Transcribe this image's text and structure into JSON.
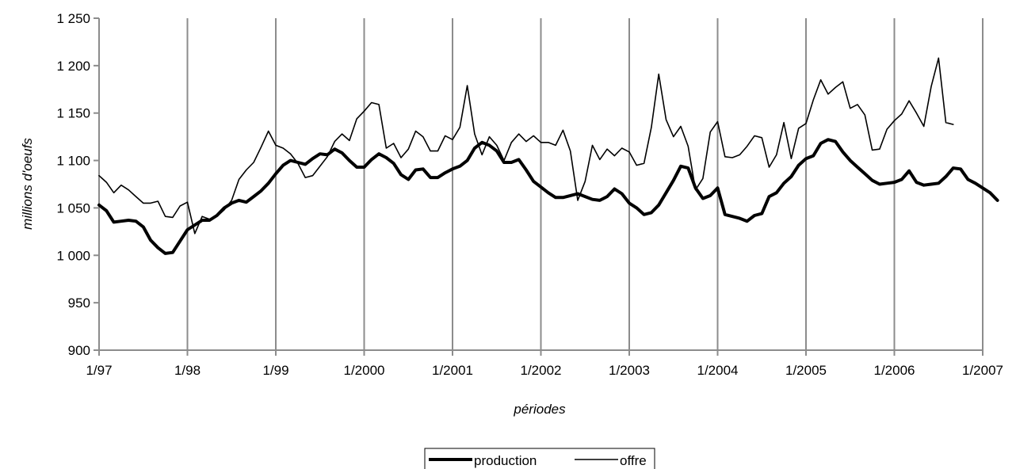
{
  "chart_data": {
    "type": "line",
    "title": "",
    "xlabel": "périodes",
    "ylabel": "millions d'oeufs",
    "ylim": [
      900,
      1250
    ],
    "yticks": [
      900,
      950,
      1000,
      1050,
      1100,
      1150,
      1200,
      1250
    ],
    "ytick_labels": [
      "900",
      "950",
      "1 000",
      "1 050",
      "1 100",
      "1 150",
      "1 200",
      "1 250"
    ],
    "xlim": [
      1997,
      2007
    ],
    "xticks": [
      1997,
      1998,
      1999,
      2000,
      2001,
      2002,
      2003,
      2004,
      2005,
      2006,
      2007
    ],
    "xtick_labels": [
      "1/97",
      "1/98",
      "1/99",
      "1/2000",
      "1/2001",
      "1/2002",
      "1/2003",
      "1/2004",
      "1/2005",
      "1/2006",
      "1/2007"
    ],
    "grid": "vertical",
    "legend_position": "bottom",
    "series": [
      {
        "name": "production",
        "start": "1/97",
        "frequency": "monthly",
        "values": [
          1053,
          1047,
          1035,
          1036,
          1037,
          1036,
          1030,
          1016,
          1008,
          1002,
          1003,
          1015,
          1027,
          1032,
          1037,
          1037,
          1042,
          1050,
          1055,
          1058,
          1056,
          1062,
          1068,
          1076,
          1086,
          1095,
          1100,
          1098,
          1096,
          1102,
          1107,
          1106,
          1112,
          1108,
          1100,
          1093,
          1093,
          1101,
          1107,
          1103,
          1097,
          1085,
          1080,
          1090,
          1091,
          1082,
          1082,
          1087,
          1091,
          1094,
          1100,
          1113,
          1119,
          1116,
          1110,
          1098,
          1098,
          1101,
          1090,
          1078,
          1072,
          1066,
          1061,
          1061,
          1063,
          1065,
          1062,
          1059,
          1058,
          1062,
          1070,
          1065,
          1055,
          1050,
          1043,
          1045,
          1053,
          1066,
          1079,
          1094,
          1092,
          1071,
          1060,
          1063,
          1071,
          1043,
          1041,
          1039,
          1036,
          1042,
          1044,
          1062,
          1066,
          1076,
          1083,
          1095,
          1102,
          1105,
          1118,
          1122,
          1120,
          1109,
          1100,
          1093,
          1086,
          1079,
          1075,
          1076,
          1077,
          1080,
          1089,
          1077,
          1074,
          1075,
          1076,
          1083,
          1092,
          1091,
          1080,
          1076,
          1071,
          1066,
          1058
        ]
      },
      {
        "name": "offre",
        "start": "1/97",
        "frequency": "monthly",
        "values": [
          1084,
          1077,
          1066,
          1074,
          1069,
          1062,
          1055,
          1055,
          1057,
          1041,
          1040,
          1052,
          1056,
          1023,
          1041,
          1038,
          1041,
          1048,
          1058,
          1080,
          1090,
          1098,
          1114,
          1131,
          1116,
          1113,
          1107,
          1097,
          1082,
          1084,
          1094,
          1104,
          1120,
          1128,
          1121,
          1144,
          1152,
          1161,
          1159,
          1113,
          1118,
          1103,
          1112,
          1131,
          1125,
          1110,
          1110,
          1126,
          1122,
          1135,
          1179,
          1128,
          1106,
          1125,
          1116,
          1100,
          1119,
          1128,
          1120,
          1126,
          1119,
          1119,
          1116,
          1132,
          1110,
          1058,
          1078,
          1116,
          1101,
          1112,
          1105,
          1113,
          1109,
          1095,
          1097,
          1135,
          1191,
          1143,
          1125,
          1136,
          1115,
          1069,
          1081,
          1130,
          1141,
          1104,
          1103,
          1106,
          1115,
          1126,
          1124,
          1093,
          1106,
          1140,
          1102,
          1134,
          1139,
          1164,
          1185,
          1170,
          1177,
          1183,
          1155,
          1159,
          1148,
          1111,
          1112,
          1133,
          1142,
          1149,
          1163,
          1150,
          1136,
          1178,
          1208,
          1140,
          1138
        ]
      }
    ]
  }
}
